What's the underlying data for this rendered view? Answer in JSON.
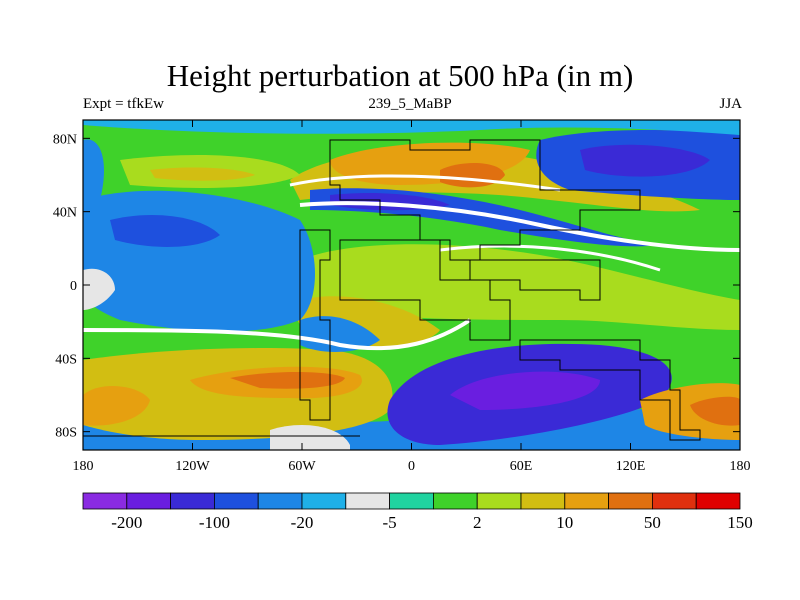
{
  "chart_data": {
    "type": "heatmap",
    "title": "Height perturbation at 500 hPa (in m)",
    "subtitle_left": "Expt = tfkEw",
    "subtitle_center": "239_5_MaBP",
    "subtitle_right": "JJA",
    "x_ticks": [
      "180",
      "120W",
      "60W",
      "0",
      "60E",
      "120E",
      "180"
    ],
    "y_ticks": [
      "80N",
      "40N",
      "0",
      "40S",
      "80S"
    ],
    "xlim": [
      -180,
      180
    ],
    "ylim": [
      -90,
      90
    ],
    "x_tick_values": [
      -180,
      -120,
      -60,
      0,
      60,
      120,
      180
    ],
    "y_tick_values": [
      80,
      40,
      0,
      -40,
      -80
    ],
    "colorbar": {
      "colors": [
        "#8a2be2",
        "#6a1ee0",
        "#3a2ad6",
        "#1e50de",
        "#1e86e6",
        "#1fb0e8",
        "#e6e6e6",
        "#20d3a0",
        "#3fd22a",
        "#a9dc1e",
        "#d2be12",
        "#e6a010",
        "#e07010",
        "#e0300e",
        "#e00000"
      ],
      "labels": [
        "-200",
        "-100",
        "-20",
        "-5",
        "2",
        "10",
        "50",
        "150"
      ]
    }
  }
}
